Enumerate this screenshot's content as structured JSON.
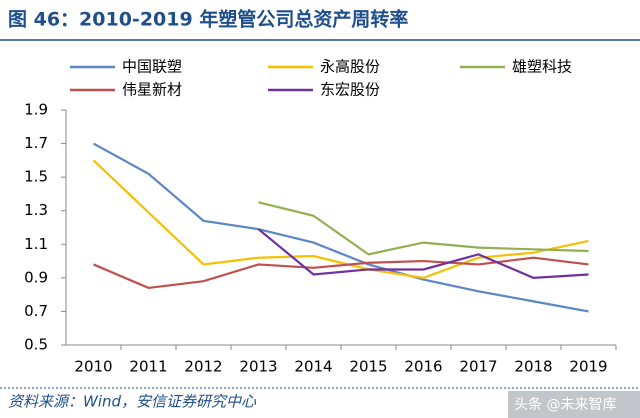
{
  "chart_data": {
    "type": "line",
    "title": "图 46：2010-2019 年塑管公司总资产周转率",
    "source": "资料来源：Wind，安信证券研究中心",
    "watermark": "头条 @未来智库",
    "categories": [
      "2010",
      "2011",
      "2012",
      "2013",
      "2014",
      "2015",
      "2016",
      "2017",
      "2018",
      "2019"
    ],
    "series": [
      {
        "name": "中国联塑",
        "color": "#5b87c4",
        "values": [
          1.7,
          1.52,
          1.24,
          1.19,
          1.11,
          0.98,
          0.89,
          0.82,
          0.76,
          0.7
        ]
      },
      {
        "name": "永高股份",
        "color": "#f5c000",
        "values": [
          1.6,
          1.29,
          0.98,
          1.02,
          1.03,
          0.95,
          0.9,
          1.02,
          1.05,
          1.12
        ]
      },
      {
        "name": "雄塑科技",
        "color": "#92b050",
        "values": [
          null,
          null,
          null,
          1.35,
          1.27,
          1.04,
          1.11,
          1.08,
          1.07,
          1.06
        ]
      },
      {
        "name": "伟星新材",
        "color": "#c0504d",
        "values": [
          0.98,
          0.84,
          0.88,
          0.98,
          0.96,
          0.99,
          1.0,
          0.98,
          1.02,
          0.98
        ]
      },
      {
        "name": "东宏股份",
        "color": "#7030a0",
        "values": [
          null,
          null,
          null,
          1.19,
          0.92,
          0.95,
          0.95,
          1.04,
          0.9,
          0.92
        ]
      }
    ],
    "ylim": [
      0.5,
      1.9
    ],
    "yticks": [
      0.5,
      0.7,
      0.9,
      1.1,
      1.3,
      1.5,
      1.7,
      1.9
    ],
    "grid": false
  }
}
